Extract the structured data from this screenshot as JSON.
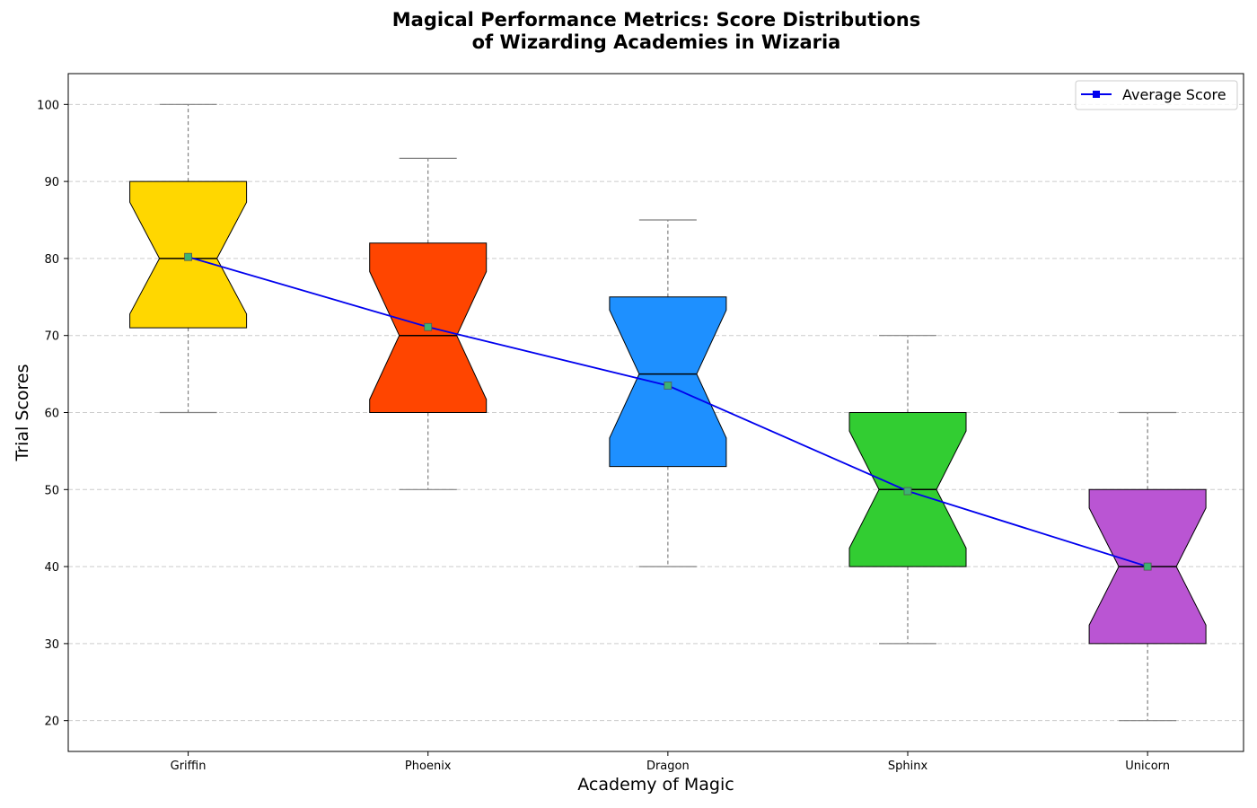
{
  "chart_data": {
    "type": "box",
    "title_lines": [
      "Magical Performance Metrics: Score Distributions",
      "of Wizarding Academies in Wizaria"
    ],
    "xlabel": "Academy of Magic",
    "ylabel": "Trial Scores",
    "ylim": [
      16,
      104
    ],
    "yticks": [
      20,
      30,
      40,
      50,
      60,
      70,
      80,
      90,
      100
    ],
    "grid": "y-dashed",
    "notched": true,
    "categories": [
      "Griffin",
      "Phoenix",
      "Dragon",
      "Sphinx",
      "Unicorn"
    ],
    "boxes": [
      {
        "name": "Griffin",
        "whisker_low": 60,
        "q1": 71,
        "median": 80,
        "q3": 90,
        "whisker_high": 100,
        "notch_low": 72.8,
        "notch_high": 87.3,
        "mean": 80.2,
        "color": "#FFD700"
      },
      {
        "name": "Phoenix",
        "whisker_low": 50,
        "q1": 60,
        "median": 70,
        "q3": 82,
        "whisker_high": 93,
        "notch_low": 61.7,
        "notch_high": 78.3,
        "mean": 71.1,
        "color": "#FF4500"
      },
      {
        "name": "Dragon",
        "whisker_low": 40,
        "q1": 53,
        "median": 65,
        "q3": 75,
        "whisker_high": 85,
        "notch_low": 56.7,
        "notch_high": 73.3,
        "mean": 63.5,
        "color": "#1E90FF"
      },
      {
        "name": "Sphinx",
        "whisker_low": 30,
        "q1": 40,
        "median": 50,
        "q3": 60,
        "whisker_high": 70,
        "notch_low": 42.4,
        "notch_high": 57.6,
        "mean": 49.8,
        "color": "#32CD32"
      },
      {
        "name": "Unicorn",
        "whisker_low": 20,
        "q1": 30,
        "median": 40,
        "q3": 50,
        "whisker_high": 60,
        "notch_low": 32.4,
        "notch_high": 47.6,
        "mean": 40.0,
        "color": "#BA55D3"
      }
    ],
    "mean_marker_color": "#3CB371",
    "average_line": {
      "name": "Average Score",
      "color": "#0000EE",
      "values": [
        80.2,
        71.1,
        63.5,
        49.8,
        40.0
      ]
    },
    "legend": {
      "placement": "top-right",
      "entries": [
        "Average Score"
      ]
    }
  }
}
